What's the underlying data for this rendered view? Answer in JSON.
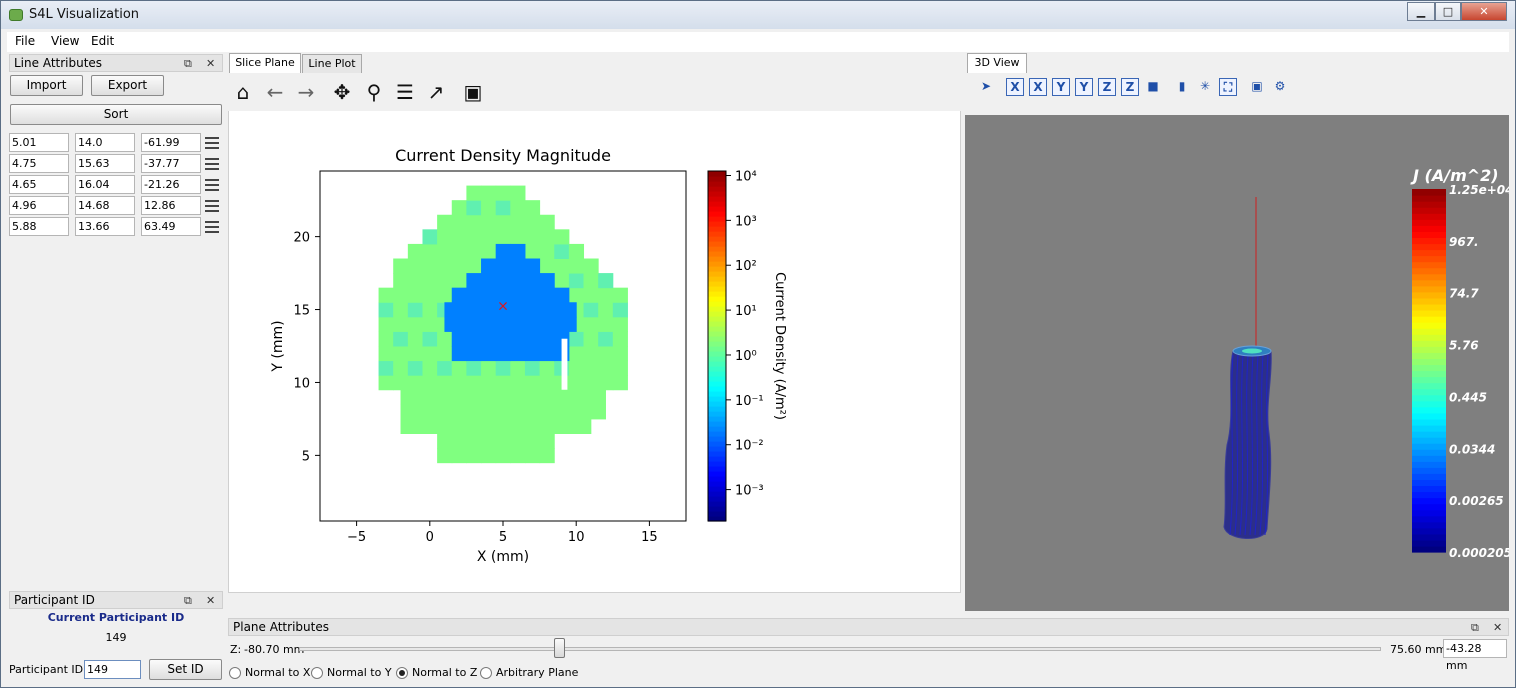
{
  "window": {
    "title": "S4L Visualization",
    "min_icon": "minimize-icon",
    "max_icon": "maximize-icon",
    "close_icon": "close-icon"
  },
  "menu": [
    {
      "label": "File"
    },
    {
      "label": "View"
    },
    {
      "label": "Edit"
    }
  ],
  "line_attributes": {
    "title": "Line Attributes",
    "import_label": "Import",
    "export_label": "Export",
    "sort_label": "Sort",
    "rows": [
      {
        "x": "5.01",
        "y": "14.0",
        "z": "-61.99"
      },
      {
        "x": "4.75",
        "y": "15.63",
        "z": "-37.77"
      },
      {
        "x": "4.65",
        "y": "16.04",
        "z": "-21.26"
      },
      {
        "x": "4.96",
        "y": "14.68",
        "z": "12.86"
      },
      {
        "x": "5.88",
        "y": "13.66",
        "z": "63.49"
      }
    ]
  },
  "participant": {
    "title": "Participant ID",
    "current_label": "Current Participant ID",
    "current_value": "149",
    "field_label": "Participant ID:",
    "field_value": "149",
    "set_label": "Set ID"
  },
  "tabs": {
    "slice_plane": "Slice Plane",
    "line_plot": "Line Plot",
    "view3d": "3D View"
  },
  "toolbar": [
    "home-icon",
    "back-arrow-icon",
    "forward-arrow-icon",
    "pan-icon",
    "zoom-icon",
    "configure-subplots-icon",
    "edit-axis-icon",
    "save-icon"
  ],
  "view_toolbar": [
    "select-icon",
    "view-x-plus-icon",
    "view-x-minus-icon",
    "view-y-plus-icon",
    "view-y-minus-icon",
    "view-z-plus-icon",
    "view-z-minus-icon",
    "cube-icon",
    "slice-icon",
    "axes-icon",
    "fit-view-icon",
    "save-icon",
    "settings-icon"
  ],
  "chart_data": {
    "type": "heatmap",
    "title": "Current Density Magnitude",
    "xlabel": "X (mm)",
    "ylabel": "Y (mm)",
    "xlim": [
      -7.5,
      17.5
    ],
    "ylim": [
      0.5,
      24.5
    ],
    "xticks": [
      {
        "v": -5,
        "label": "−5"
      },
      {
        "v": 0,
        "label": "0"
      },
      {
        "v": 5,
        "label": "5"
      },
      {
        "v": 10,
        "label": "10"
      },
      {
        "v": 15,
        "label": "15"
      }
    ],
    "yticks": [
      {
        "v": 5,
        "label": "5"
      },
      {
        "v": 10,
        "label": "10"
      },
      {
        "v": 15,
        "label": "15"
      },
      {
        "v": 20,
        "label": "20"
      }
    ],
    "colorbar": {
      "label": "Current Density (A/m²)",
      "scale": "log",
      "range": [
        -3.7,
        4.1
      ],
      "ticks": [
        {
          "v": 4,
          "label": "10⁴"
        },
        {
          "v": 3,
          "label": "10³"
        },
        {
          "v": 2,
          "label": "10²"
        },
        {
          "v": 1,
          "label": "10¹"
        },
        {
          "v": 0,
          "label": "10⁰"
        },
        {
          "v": -1,
          "label": "10⁻¹"
        },
        {
          "v": -2,
          "label": "10⁻²"
        },
        {
          "v": -3,
          "label": "10⁻³"
        }
      ]
    },
    "marker": {
      "x": 5.0,
      "y": 15.2,
      "symbol": "×",
      "color": "#e0161b"
    },
    "regions": [
      {
        "name": "outer",
        "color": "#80ff80",
        "x": [
          -3.5,
          13.5
        ],
        "y": [
          9.5,
          24.5
        ]
      },
      {
        "name": "inner",
        "color": "#0080ff",
        "x": [
          1.5,
          9.5
        ],
        "y": [
          12.0,
          19.0
        ]
      }
    ]
  },
  "view3d": {
    "colorbar_title": "J (A/m^2)",
    "colorbar_labels": [
      "1.25e+04",
      "967.",
      "74.7",
      "5.76",
      "0.445",
      "0.0344",
      "0.00265",
      "0.000205"
    ],
    "background": "#7f7f7f"
  },
  "plane": {
    "title": "Plane Attributes",
    "axis_label": "Z:",
    "min_label": "-80.70 mm",
    "max_label": "75.60 mm",
    "value": "-43.28 mm",
    "slider_fraction": 0.24,
    "options": [
      {
        "label": "Normal to X",
        "checked": false
      },
      {
        "label": "Normal to Y",
        "checked": false
      },
      {
        "label": "Normal to Z",
        "checked": true
      },
      {
        "label": "Arbitrary Plane",
        "checked": false
      }
    ]
  }
}
